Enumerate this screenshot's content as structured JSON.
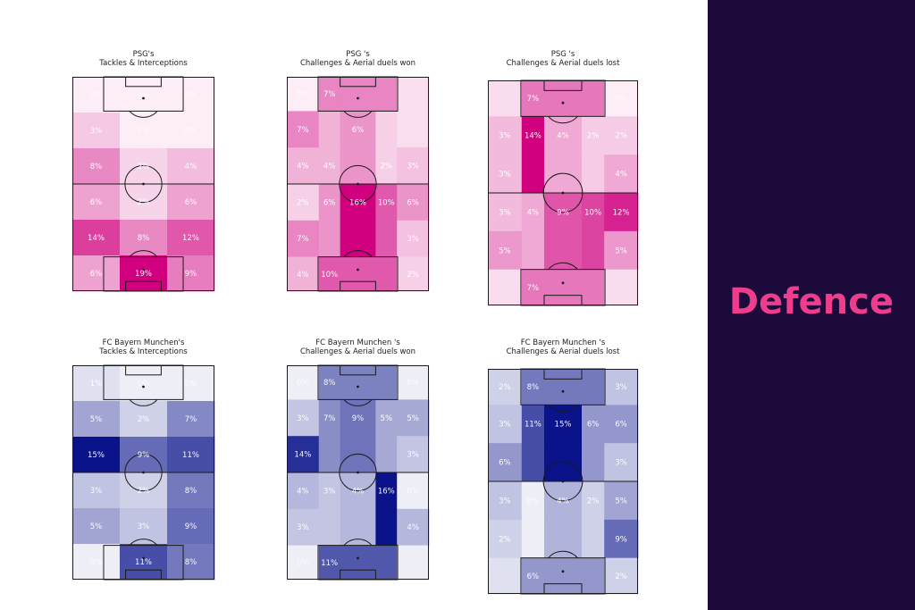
{
  "side_title": "Defence",
  "colors": {
    "psg": "#d0007f",
    "bayern": "#0a138a",
    "panel_bg": "#1c0a3a",
    "accent": "#ee3d8c"
  },
  "chart_data": [
    {
      "type": "heatmap",
      "team": "psg",
      "title_line1": "PSG's",
      "title_line2": "Tackles & Interceptions",
      "layout": "3x6",
      "rows": [
        [
          0,
          0,
          0
        ],
        [
          3,
          0,
          0
        ],
        [
          8,
          2,
          4
        ],
        [
          6,
          2,
          6
        ],
        [
          14,
          8,
          12
        ],
        [
          6,
          19,
          9
        ]
      ],
      "labels": [
        [
          "0%",
          "0%",
          "0%"
        ],
        [
          "3%",
          "0%",
          "0%"
        ],
        [
          "8%",
          "2%",
          "4%"
        ],
        [
          "6%",
          "2%",
          "6%"
        ],
        [
          "14%",
          "8%",
          "12%"
        ],
        [
          "6%",
          "19%",
          "9%"
        ]
      ]
    },
    {
      "type": "heatmap",
      "team": "psg",
      "title_line1": "PSG 's",
      "title_line2": "Challenges & Aerial duels won",
      "layout": "5x5",
      "rows": [
        [
          0,
          7,
          7,
          7,
          1
        ],
        [
          7,
          4,
          6,
          2,
          1
        ],
        [
          4,
          4,
          6,
          2,
          3
        ],
        [
          2,
          6,
          16,
          10,
          6
        ],
        [
          7,
          6,
          16,
          10,
          3
        ],
        [
          4,
          10,
          10,
          10,
          2
        ]
      ],
      "labels": [
        [
          "0%",
          "7%",
          "",
          "",
          ""
        ],
        [
          "7%",
          "",
          "6%",
          "",
          ""
        ],
        [
          "4%",
          "4%",
          "",
          "2%",
          "3%"
        ],
        [
          "2%",
          "6%",
          "16%",
          "10%",
          "6%"
        ],
        [
          "7%",
          "",
          "",
          "",
          "3%"
        ],
        [
          "4%",
          "10%",
          "",
          "",
          "2%"
        ]
      ]
    },
    {
      "type": "heatmap",
      "team": "psg",
      "title_line1": "PSG 's",
      "title_line2": "Challenges & Aerial duels lost",
      "layout": "5x5",
      "rows": [
        [
          1,
          7,
          7,
          7,
          0
        ],
        [
          3,
          14,
          4,
          2,
          2
        ],
        [
          3,
          14,
          4,
          2,
          4
        ],
        [
          3,
          4,
          9,
          10,
          12
        ],
        [
          5,
          4,
          9,
          10,
          5
        ],
        [
          1,
          7,
          7,
          7,
          1
        ]
      ],
      "labels": [
        [
          "",
          "7%",
          "",
          "",
          "0%"
        ],
        [
          "3%",
          "14%",
          "4%",
          "2%",
          "2%"
        ],
        [
          "3%",
          "",
          "",
          "",
          "4%"
        ],
        [
          "3%",
          "4%",
          "9%",
          "10%",
          "12%"
        ],
        [
          "5%",
          "",
          "",
          "",
          "5%"
        ],
        [
          "",
          "7%",
          "",
          "",
          ""
        ]
      ]
    },
    {
      "type": "heatmap",
      "team": "bayern",
      "title_line1": "FC Bayern Munchen's",
      "title_line2": "Tackles & Interceptions",
      "layout": "3x6",
      "rows": [
        [
          1,
          0,
          0
        ],
        [
          5,
          2,
          7
        ],
        [
          15,
          9,
          11
        ],
        [
          3,
          2,
          8
        ],
        [
          5,
          3,
          9
        ],
        [
          0,
          11,
          8
        ]
      ],
      "labels": [
        [
          "1%",
          "0%",
          "0%"
        ],
        [
          "5%",
          "2%",
          "7%"
        ],
        [
          "15%",
          "9%",
          "11%"
        ],
        [
          "3%",
          "2%",
          "8%"
        ],
        [
          "5%",
          "3%",
          "9%"
        ],
        [
          "0%",
          "11%",
          "8%"
        ]
      ]
    },
    {
      "type": "heatmap",
      "team": "bayern",
      "title_line1": "FC Bayern Munchen 's",
      "title_line2": "Challenges & Aerial duels won",
      "layout": "5x5",
      "rows": [
        [
          0,
          8,
          8,
          8,
          0
        ],
        [
          3,
          7,
          9,
          5,
          5
        ],
        [
          14,
          7,
          9,
          5,
          3
        ],
        [
          4,
          3,
          4,
          16,
          0
        ],
        [
          3,
          3,
          4,
          16,
          4
        ],
        [
          0,
          11,
          11,
          11,
          0
        ]
      ],
      "labels": [
        [
          "0%",
          "8%",
          "",
          "",
          "0%"
        ],
        [
          "3%",
          "7%",
          "9%",
          "5%",
          "5%"
        ],
        [
          "14%",
          "",
          "",
          "",
          "3%"
        ],
        [
          "4%",
          "3%",
          "4%",
          "16%",
          "0%"
        ],
        [
          "3%",
          "",
          "",
          "",
          "4%"
        ],
        [
          "0%",
          "11%",
          "",
          "",
          ""
        ]
      ]
    },
    {
      "type": "heatmap",
      "team": "bayern",
      "title_line1": "FC Bayern Munchen 's",
      "title_line2": "Challenges & Aerial duels lost",
      "layout": "5x5",
      "rows": [
        [
          2,
          8,
          8,
          8,
          3
        ],
        [
          3,
          11,
          15,
          6,
          6
        ],
        [
          6,
          11,
          15,
          6,
          3
        ],
        [
          3,
          0,
          4,
          2,
          5
        ],
        [
          2,
          0,
          4,
          2,
          9
        ],
        [
          1,
          6,
          6,
          6,
          2
        ]
      ],
      "labels": [
        [
          "2%",
          "8%",
          "",
          "",
          "3%"
        ],
        [
          "3%",
          "11%",
          "15%",
          "6%",
          "6%"
        ],
        [
          "6%",
          "",
          "",
          "",
          "3%"
        ],
        [
          "3%",
          "0%",
          "4%",
          "2%",
          "5%"
        ],
        [
          "2%",
          "",
          "",
          "",
          "9%"
        ],
        [
          "",
          "6%",
          "",
          "",
          "2%"
        ]
      ]
    }
  ]
}
